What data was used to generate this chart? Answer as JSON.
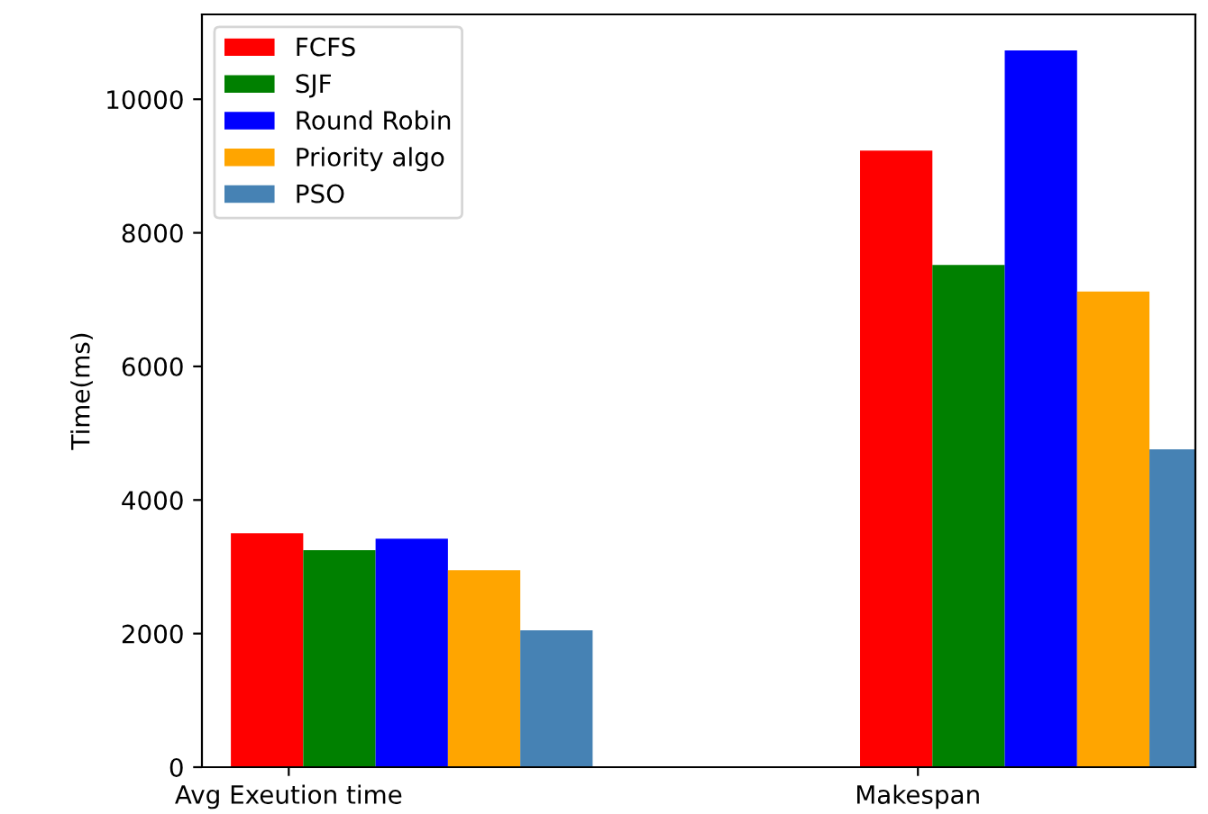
{
  "chart_data": {
    "type": "bar",
    "ylabel": "Time(ms)",
    "categories": [
      "Avg Exeution time",
      "Makespan"
    ],
    "series": [
      {
        "name": "FCFS",
        "color": "#ff0000",
        "values": [
          3500,
          9230
        ]
      },
      {
        "name": "SJF",
        "color": "#008000",
        "values": [
          3250,
          7520
        ]
      },
      {
        "name": "Round Robin",
        "color": "#0000ff",
        "values": [
          3420,
          10730
        ]
      },
      {
        "name": "Priority algo",
        "color": "#ffa500",
        "values": [
          2950,
          7120
        ]
      },
      {
        "name": "PSO",
        "color": "#4682b4",
        "values": [
          2050,
          4760
        ]
      }
    ],
    "ylim": [
      0,
      11270
    ],
    "yticks": [
      0,
      2000,
      4000,
      6000,
      8000,
      10000
    ],
    "legend": "top left",
    "grid": false
  }
}
